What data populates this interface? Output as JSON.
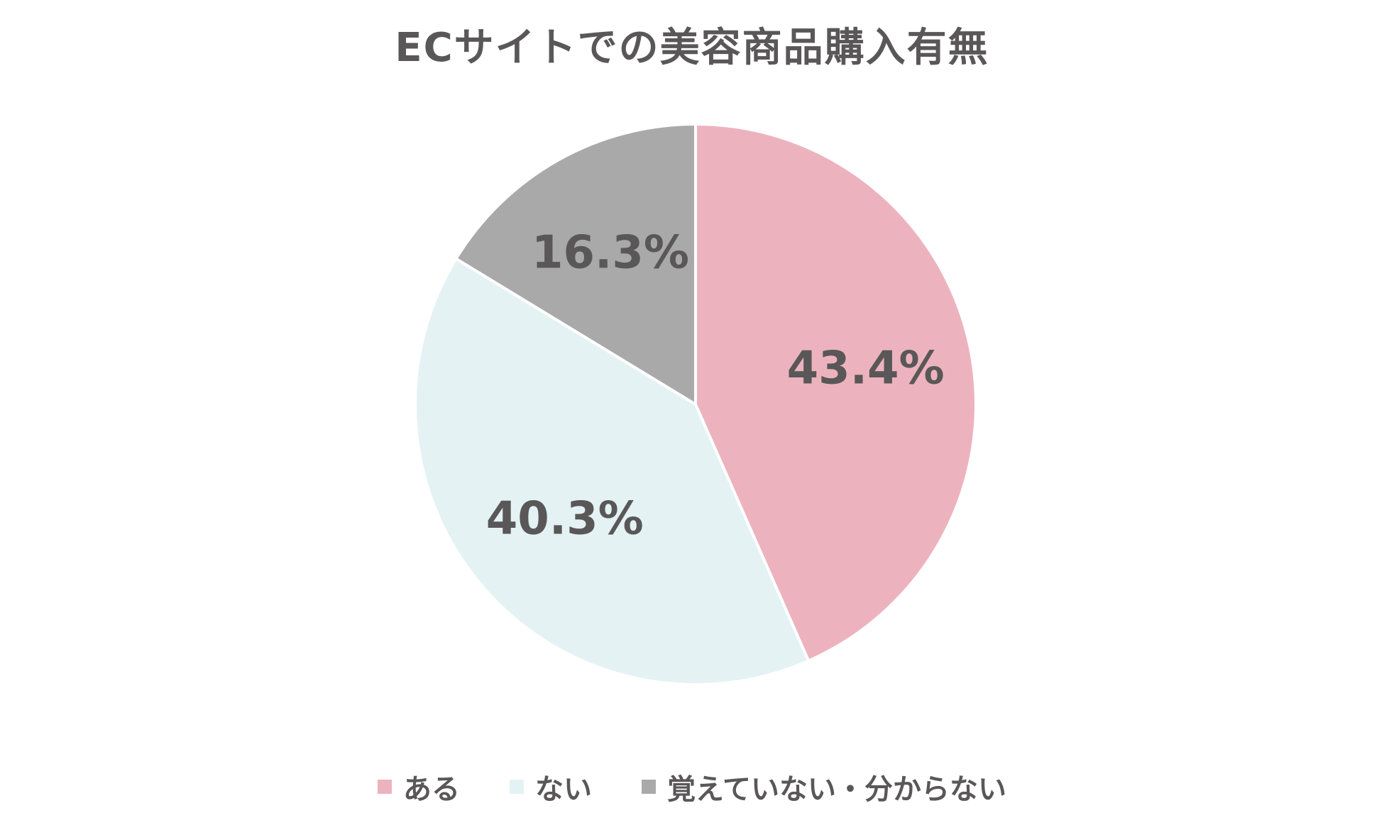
{
  "chart_data": {
    "type": "pie",
    "title": "ECサイトでの美容商品購入有無",
    "categories": [
      "ある",
      "ない",
      "覚えていない・分からない"
    ],
    "values": [
      43.4,
      40.3,
      16.3
    ],
    "value_labels": [
      "43.4%",
      "40.3%",
      "16.3%"
    ],
    "colors": [
      "#ECB3BE",
      "#E4F2F4",
      "#AAA9AA"
    ],
    "start_angle": "12 o'clock",
    "direction": "clockwise",
    "legend_position": "bottom"
  }
}
